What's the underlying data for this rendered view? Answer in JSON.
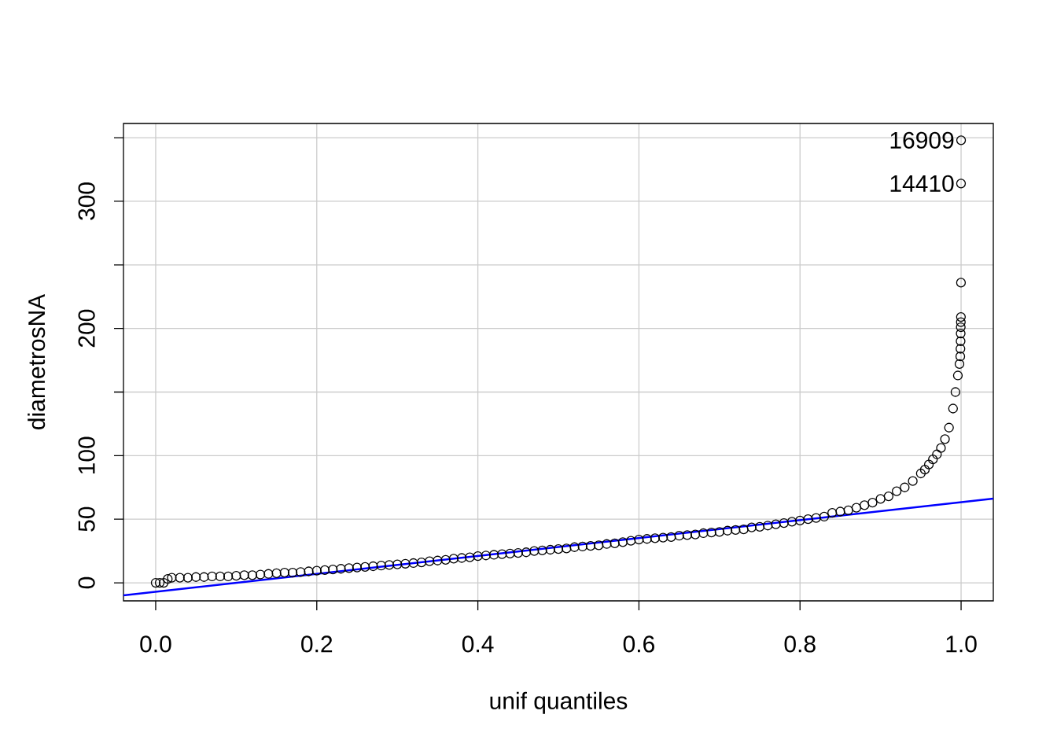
{
  "chart_data": {
    "type": "scatter",
    "xlabel": "unif quantiles",
    "ylabel": "diametrosNA",
    "xlim": [
      -0.04,
      1.04
    ],
    "ylim": [
      -14.2,
      361.2
    ],
    "xticks": [
      {
        "value": 0,
        "label": "0.0"
      },
      0.2,
      0.4,
      0.6,
      0.8,
      {
        "value": 1,
        "label": "1.0"
      }
    ],
    "yticks": [
      0,
      50,
      100,
      {
        "value": 150,
        "label": null
      },
      200,
      {
        "value": 250,
        "label": null
      },
      300,
      {
        "value": 350,
        "label": null
      }
    ],
    "grid": true,
    "marker": "circle",
    "annotations": [
      {
        "text": "16909",
        "x": 1,
        "y": 348
      },
      {
        "text": "14410",
        "x": 1,
        "y": 314
      }
    ],
    "series": [
      {
        "color": "#000000",
        "x": [
          0,
          0.005,
          0.01,
          0.015,
          0.02,
          0.03,
          0.04,
          0.05,
          0.06,
          0.07,
          0.08,
          0.09,
          0.1,
          0.11,
          0.12,
          0.13,
          0.14,
          0.15,
          0.16,
          0.17,
          0.18,
          0.19,
          0.2,
          0.21,
          0.22,
          0.23,
          0.24,
          0.25,
          0.26,
          0.27,
          0.28,
          0.29,
          0.3,
          0.31,
          0.32,
          0.33,
          0.34,
          0.35,
          0.36,
          0.37,
          0.38,
          0.39,
          0.4,
          0.41,
          0.42,
          0.43,
          0.44,
          0.45,
          0.46,
          0.47,
          0.48,
          0.49,
          0.5,
          0.51,
          0.52,
          0.53,
          0.54,
          0.55,
          0.56,
          0.57,
          0.58,
          0.59,
          0.6,
          0.61,
          0.62,
          0.63,
          0.64,
          0.65,
          0.66,
          0.67,
          0.68,
          0.69,
          0.7,
          0.71,
          0.72,
          0.73,
          0.74,
          0.75,
          0.76,
          0.77,
          0.78,
          0.79,
          0.8,
          0.81,
          0.82,
          0.83,
          0.84,
          0.85,
          0.86,
          0.87,
          0.88,
          0.89,
          0.9,
          0.91,
          0.92,
          0.93,
          0.94,
          0.95,
          0.955,
          0.96,
          0.965,
          0.97,
          0.975,
          0.98,
          0.985,
          0.99,
          0.993,
          0.996,
          0.998,
          0.999,
          0.9992,
          0.9994,
          0.9995,
          0.9996,
          0.9997,
          0.9998,
          0.99985,
          0.9999,
          1
        ],
        "values": [
          0,
          0,
          0,
          3,
          4,
          4,
          4,
          4.5,
          4.5,
          5,
          5,
          5,
          5.5,
          6,
          6,
          6.5,
          7,
          7.5,
          8,
          8,
          8.5,
          9,
          9.5,
          10,
          10.5,
          11,
          11.5,
          12,
          12.5,
          13,
          13.5,
          14,
          14.5,
          15,
          15.5,
          16,
          17,
          17.5,
          18,
          19,
          19.5,
          20,
          21,
          21.5,
          22,
          22.5,
          23,
          23.5,
          24,
          25,
          25.5,
          26,
          26.5,
          27,
          28,
          28.5,
          29,
          29.5,
          30.5,
          31,
          32,
          33,
          34,
          34.5,
          35,
          35.5,
          36,
          37,
          37.5,
          38,
          39,
          39.5,
          40,
          41,
          41.5,
          42,
          43.5,
          44,
          45,
          46,
          47,
          48,
          49,
          50,
          51,
          52,
          55,
          56,
          57,
          59,
          61,
          63,
          66,
          68,
          72,
          75,
          80,
          86,
          89,
          93,
          97,
          101,
          106,
          113,
          122,
          137,
          150,
          163,
          172,
          178,
          184,
          190,
          196,
          201,
          205,
          209,
          236,
          314,
          348
        ]
      },
      {
        "type": "line",
        "color": "#0000ff",
        "marker": "none",
        "x": [
          -0.04,
          1.04
        ],
        "values": [
          -9.9,
          66.2
        ]
      }
    ]
  }
}
